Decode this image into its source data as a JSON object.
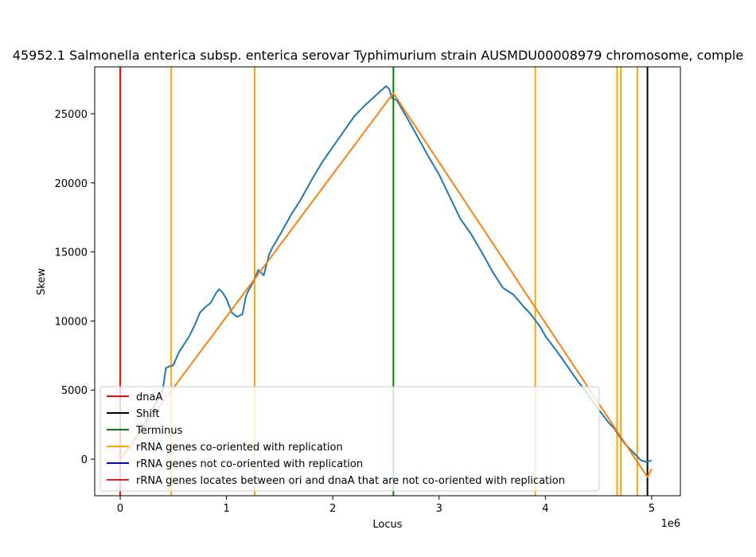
{
  "chart_data": {
    "type": "line",
    "title": "45952.1 Salmonella enterica subsp. enterica serovar Typhimurium strain AUSMDU00008979 chromosome, comple",
    "xlabel": "Locus",
    "ylabel": "Skew",
    "x_offset_label": "1e6",
    "xlim": [
      -240000,
      5270000
    ],
    "ylim": [
      -2650,
      28400
    ],
    "x_ticks": [
      0,
      1,
      2,
      3,
      4,
      5
    ],
    "y_ticks": [
      0,
      5000,
      10000,
      15000,
      20000,
      25000
    ],
    "grid": false,
    "legend_position": "lower-left",
    "colors": {
      "skew": "#1f77b4",
      "fit": "#ff7f0e",
      "dnaA": "#ff0000",
      "shift": "#000000",
      "terminus": "#008000",
      "rrna_co": "#ffa500",
      "rrna_not_co": "#0000ff",
      "rrna_between": "#d62728"
    },
    "series": [
      {
        "key": "skew",
        "x": [
          0,
          100000,
          200000,
          300000,
          400000,
          430000,
          460000,
          500000,
          550000,
          600000,
          650000,
          700000,
          750000,
          800000,
          850000,
          900000,
          930000,
          960000,
          1000000,
          1050000,
          1100000,
          1150000,
          1180000,
          1200000,
          1250000,
          1300000,
          1350000,
          1380000,
          1400000,
          1430000,
          1500000,
          1600000,
          1700000,
          1800000,
          1900000,
          2000000,
          2100000,
          2200000,
          2300000,
          2400000,
          2500000,
          2530000,
          2560000,
          2600000,
          2700000,
          2800000,
          2900000,
          3000000,
          3100000,
          3200000,
          3300000,
          3400000,
          3500000,
          3600000,
          3700000,
          3800000,
          3850000,
          3900000,
          3950000,
          4000000,
          4100000,
          4200000,
          4300000,
          4400000,
          4450000,
          4500000,
          4550000,
          4600000,
          4650000,
          4700000,
          4750000,
          4800000,
          4850000,
          4900000,
          4950000,
          5000000
        ],
        "y": [
          0,
          1000,
          2200,
          3500,
          5000,
          6600,
          6700,
          6800,
          7700,
          8300,
          8900,
          9700,
          10600,
          11000,
          11300,
          12000,
          12300,
          12100,
          11600,
          10600,
          10300,
          10500,
          11700,
          12100,
          12800,
          13700,
          13300,
          14200,
          14800,
          15300,
          16200,
          17600,
          18800,
          20200,
          21500,
          22600,
          23700,
          24800,
          25600,
          26300,
          27000,
          26800,
          26100,
          26000,
          24700,
          23300,
          21900,
          20600,
          19000,
          17400,
          16300,
          15000,
          13600,
          12400,
          11900,
          11000,
          10600,
          10100,
          9600,
          8900,
          7900,
          6800,
          5700,
          4700,
          4100,
          3600,
          3100,
          2600,
          2200,
          1600,
          1100,
          700,
          300,
          -100,
          -200,
          -100
        ]
      },
      {
        "key": "fit",
        "x": [
          0,
          2570000,
          4960000,
          5000000
        ],
        "y": [
          0,
          26500,
          -1300,
          -700
        ]
      }
    ],
    "vlines": [
      {
        "key": "dnaA",
        "x": 0
      },
      {
        "key": "shift",
        "x": 4960000
      },
      {
        "key": "terminus",
        "x": 2570000
      },
      {
        "key": "rrna_co",
        "x": 480000
      },
      {
        "key": "rrna_co",
        "x": 1265000
      },
      {
        "key": "rrna_co",
        "x": 3905000
      },
      {
        "key": "rrna_co",
        "x": 4675000
      },
      {
        "key": "rrna_co",
        "x": 4710000
      },
      {
        "key": "rrna_co",
        "x": 4865000
      }
    ],
    "legend": [
      {
        "key": "dnaA",
        "label": "dnaA"
      },
      {
        "key": "shift",
        "label": "Shift"
      },
      {
        "key": "terminus",
        "label": "Terminus"
      },
      {
        "key": "rrna_co",
        "label": "rRNA genes co-oriented with replication"
      },
      {
        "key": "rrna_not_co",
        "label": "rRNA genes not co-oriented with replication"
      },
      {
        "key": "rrna_between",
        "label": "rRNA genes locates between ori and dnaA that are not co-oriented with replication"
      }
    ]
  }
}
